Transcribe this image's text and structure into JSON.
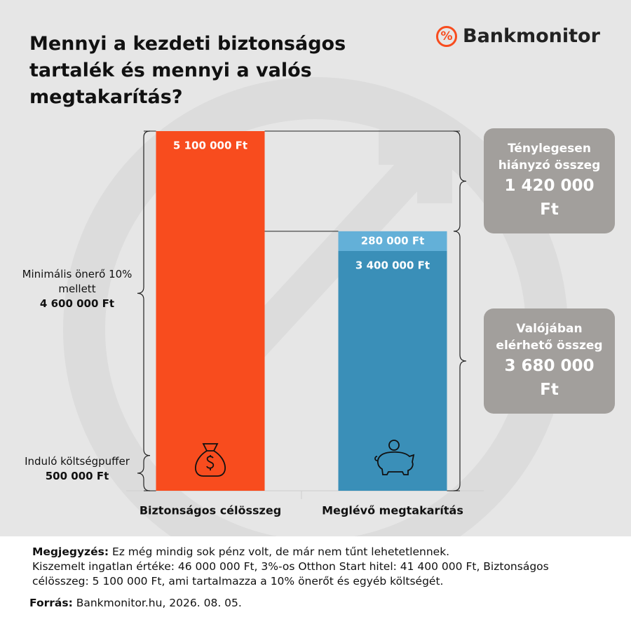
{
  "chart_data": {
    "type": "stacked_bar",
    "title": "Mennyi a kezdeti biztonságos tartalék és mennyi a valós megtakarítás?",
    "logo_mark": "%",
    "logo": "Bankmonitor",
    "categories": [
      "Biztonságos célösszeg",
      "Meglévő megtakarítás"
    ],
    "series": [
      {
        "color": "#f84c1e",
        "values": [
          5100000,
          null
        ],
        "value_labels": [
          "5 100 000 Ft",
          null
        ]
      },
      {
        "color": "#3a8fb8",
        "values": [
          null,
          3400000
        ],
        "value_labels": [
          null,
          "3 400 000 Ft"
        ]
      },
      {
        "color": "#63b0d8",
        "values": [
          null,
          280000
        ],
        "value_labels": [
          null,
          "280 000 Ft"
        ]
      }
    ],
    "annotations": [
      {
        "side": "left",
        "text": "Induló költségpuffer",
        "value": 500000,
        "label": "500 000 Ft"
      },
      {
        "side": "left",
        "text": "Minimális önerő 10% mellett",
        "value": 4600000,
        "label": "4 600 000 Ft"
      },
      {
        "side": "right",
        "text": "Valójában elérhető összeg",
        "value": 3680000,
        "label": "3 680 000 Ft"
      },
      {
        "side": "right",
        "text": "Ténylegesen hiányzó összeg",
        "value": 1420000,
        "label": "1 420 000 Ft"
      }
    ],
    "note": {
      "label": "Megjegyzés:",
      "lines": [
        "Ez még mindig sok pénz volt, de már nem tűnt lehetetlennek.",
        "Kiszemelt ingatlan értéke: 46 000 000 Ft, 3%-os Otthon Start hitel: 41 400 000 Ft, Biztonságos célösszeg: 5 100 000 Ft, ami tartalmazza a 10% önerőt és egyéb költségét."
      ]
    },
    "source": {
      "label": "Forrás:",
      "text": "Bankmonitor.hu, 2026. 08. 05."
    }
  }
}
